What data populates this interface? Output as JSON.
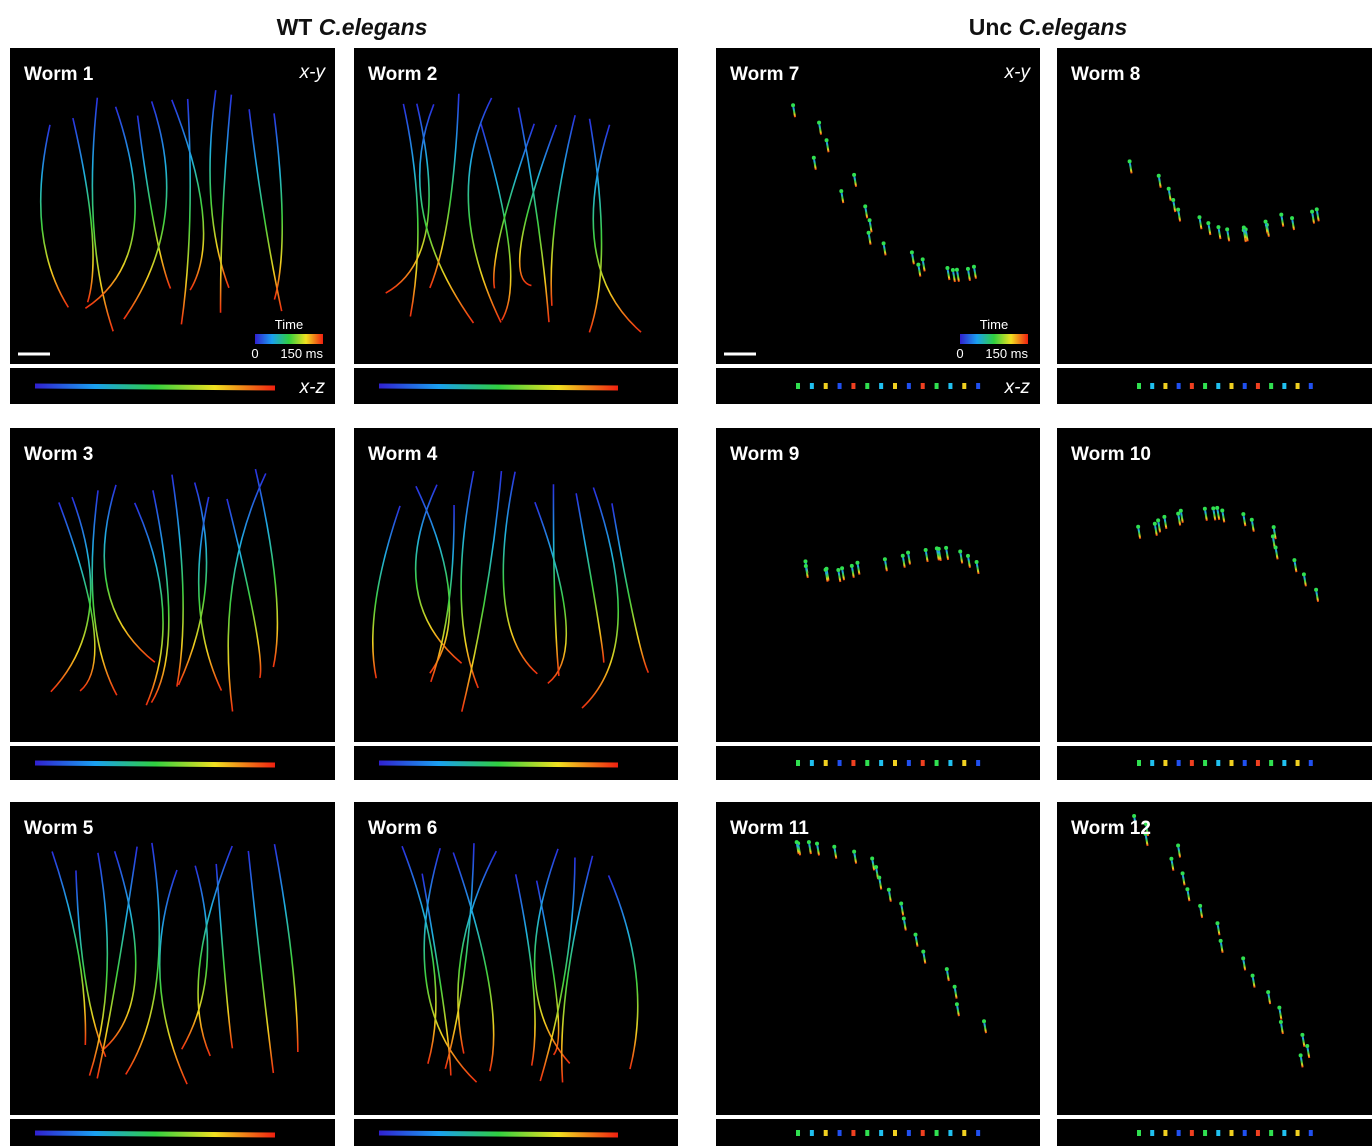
{
  "headers": [
    {
      "prefix": "WT",
      "species": "C.elegans"
    },
    {
      "prefix": "Unc",
      "species": "C.elegans"
    }
  ],
  "panels": [
    {
      "label": "Worm 1"
    },
    {
      "label": "Worm 2"
    },
    {
      "label": "Worm 3"
    },
    {
      "label": "Worm 4"
    },
    {
      "label": "Worm 5"
    },
    {
      "label": "Worm 6"
    },
    {
      "label": "Worm 7"
    },
    {
      "label": "Worm 8"
    },
    {
      "label": "Worm 9"
    },
    {
      "label": "Worm 10"
    },
    {
      "label": "Worm 11"
    },
    {
      "label": "Worm 12"
    }
  ],
  "view_labels": {
    "xy": "x-y",
    "xz": "x-z"
  },
  "colorbar": {
    "title": "Time",
    "min": "0",
    "max": "150 ms"
  }
}
